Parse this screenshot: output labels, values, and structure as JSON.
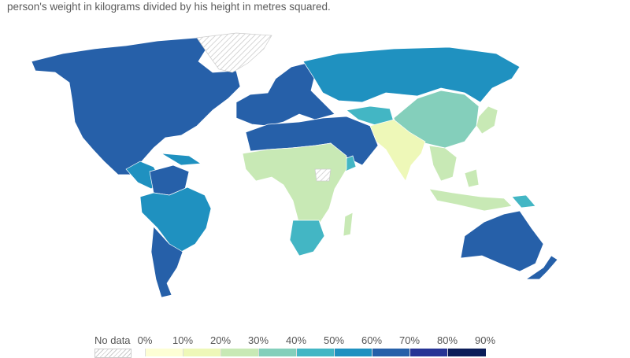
{
  "subtitle": {
    "line1": "",
    "line2": "person's weight in kilograms divided by his height in metres squared."
  },
  "legend": {
    "no_data_label": "No data",
    "no_data_pattern": "hatched",
    "ticks": [
      "0%",
      "10%",
      "20%",
      "30%",
      "40%",
      "50%",
      "60%",
      "70%",
      "80%",
      "90%"
    ],
    "bins": [
      {
        "range": [
          0,
          10
        ],
        "color": "#fdfed5"
      },
      {
        "range": [
          10,
          20
        ],
        "color": "#eef8b8"
      },
      {
        "range": [
          20,
          30
        ],
        "color": "#c8e9b5"
      },
      {
        "range": [
          30,
          40
        ],
        "color": "#84cfbb"
      },
      {
        "range": [
          40,
          50
        ],
        "color": "#43b6c4"
      },
      {
        "range": [
          50,
          60
        ],
        "color": "#1f91c0"
      },
      {
        "range": [
          60,
          70
        ],
        "color": "#2660a9"
      },
      {
        "range": [
          70,
          80
        ],
        "color": "#263495"
      },
      {
        "range": [
          80,
          90
        ],
        "color": "#0b1d59"
      }
    ]
  },
  "regions": [
    {
      "name": "north-america",
      "bin": 6
    },
    {
      "name": "greenland",
      "bin": -1
    },
    {
      "name": "central-america-caribbean",
      "bin": 5
    },
    {
      "name": "venezuela-colombia",
      "bin": 6
    },
    {
      "name": "brazil",
      "bin": 5
    },
    {
      "name": "southern-cone",
      "bin": 6
    },
    {
      "name": "europe",
      "bin": 6
    },
    {
      "name": "russia",
      "bin": 5
    },
    {
      "name": "north-africa-middle-east",
      "bin": 6
    },
    {
      "name": "central-asia",
      "bin": 4
    },
    {
      "name": "sub-saharan-africa",
      "bin": 2
    },
    {
      "name": "southern-africa",
      "bin": 4
    },
    {
      "name": "south-sudan",
      "bin": -1
    },
    {
      "name": "china-mongolia",
      "bin": 3
    },
    {
      "name": "india-south-asia",
      "bin": 1
    },
    {
      "name": "southeast-asia",
      "bin": 2
    },
    {
      "name": "japan-korea",
      "bin": 2
    },
    {
      "name": "indonesia",
      "bin": 2
    },
    {
      "name": "papua-new-guinea",
      "bin": 4
    },
    {
      "name": "australia",
      "bin": 6
    },
    {
      "name": "new-zealand",
      "bin": 6
    },
    {
      "name": "madagascar",
      "bin": 2
    }
  ]
}
